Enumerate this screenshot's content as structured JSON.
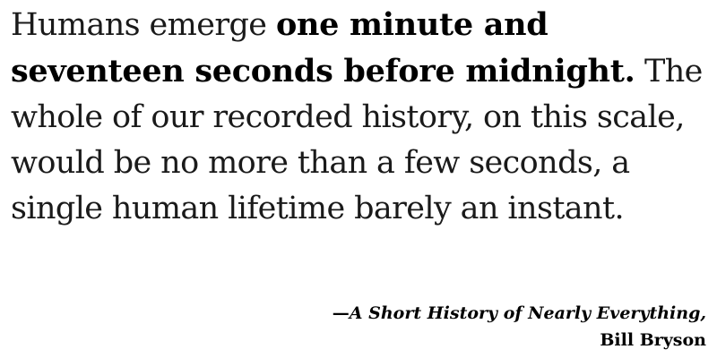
{
  "quote": {
    "lead": "Humans emerge ",
    "emphasis": "one minute and seventeen seconds before midnight.",
    "rest": " The whole of our recorded history, on this scale, would be no more than a few seconds, a single human lifetime barely an instant."
  },
  "attribution": {
    "dash": "—",
    "book": "A Short History of Nearly Everything,",
    "author": "Bill Bryson"
  }
}
